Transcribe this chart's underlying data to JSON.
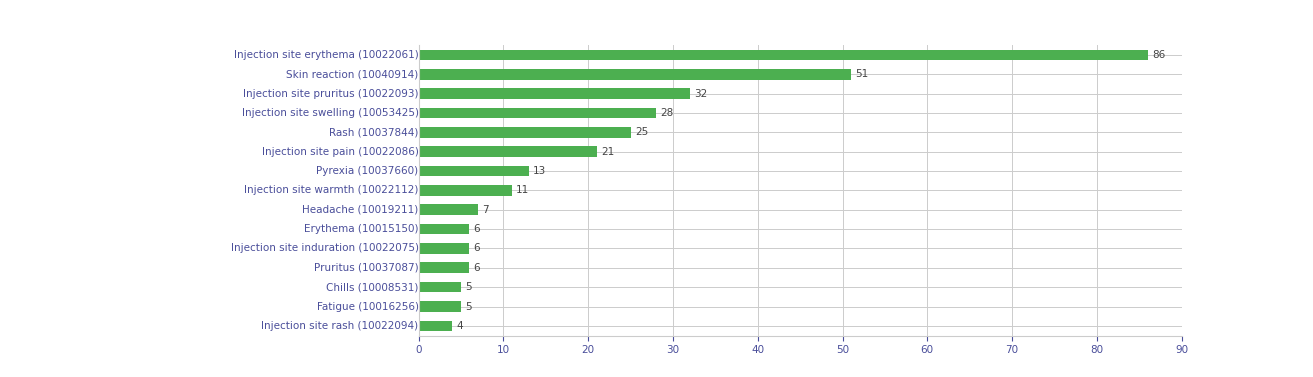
{
  "categories": [
    "Injection site erythema (10022061)",
    "Skin reaction (10040914)",
    "Injection site pruritus (10022093)",
    "Injection site swelling (10053425)",
    "Rash (10037844)",
    "Injection site pain (10022086)",
    "Pyrexia (10037660)",
    "Injection site warmth (10022112)",
    "Headache (10019211)",
    "Erythema (10015150)",
    "Injection site induration (10022075)",
    "Pruritus (10037087)",
    "Chills (10008531)",
    "Fatigue (10016256)",
    "Injection site rash (10022094)"
  ],
  "values": [
    86,
    51,
    32,
    28,
    25,
    21,
    13,
    11,
    7,
    6,
    6,
    6,
    5,
    5,
    4
  ],
  "bar_color": "#4caf50",
  "label_color": "#4a4e9a",
  "value_label_color": "#444444",
  "background_color": "#ffffff",
  "grid_color": "#cccccc",
  "xlim": [
    0,
    90
  ],
  "xticks": [
    0,
    10,
    20,
    30,
    40,
    50,
    60,
    70,
    80,
    90
  ],
  "bar_height": 0.55,
  "figsize": [
    13.13,
    3.77
  ],
  "dpi": 100,
  "value_fontsize": 7.5,
  "label_fontsize": 7.5
}
